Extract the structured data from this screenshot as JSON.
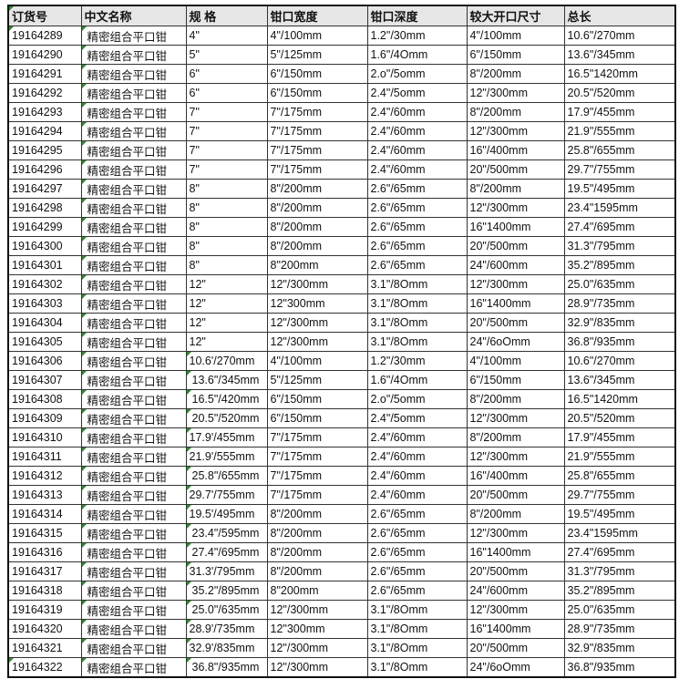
{
  "colors": {
    "header_bg": "#e6e6e6",
    "marker": "#2e8b2e"
  },
  "headers": [
    "订货号",
    "中文名称",
    "规 格",
    "钳口宽度",
    "钳口深度",
    "较大开口尺寸",
    "总长"
  ],
  "rows": [
    [
      "19164289",
      "精密组合平口钳",
      "4\"",
      "4\"/100mm",
      "1.2\"/30mm",
      "4\"/100mm",
      "10.6\"/270mm"
    ],
    [
      "19164290",
      "精密组合平口钳",
      "5\"",
      "5\"/125mm",
      "1.6\"/4Omm",
      "6\"/150mm",
      "13.6\"/345mm"
    ],
    [
      "19164291",
      "精密组合平口钳",
      "6\"",
      "6\"/150mm",
      "2.o\"/5omm",
      "8\"/200mm",
      "16.5\"1420mm"
    ],
    [
      "19164292",
      "精密组合平口钳",
      "6\"",
      "6\"/150mm",
      "2.4\"/5omm",
      "12\"/300mm",
      "20.5\"/520mm"
    ],
    [
      "19164293",
      "精密组合平口钳",
      "7\"",
      "7\"/175mm",
      "2.4\"/60mm",
      "8\"/200mm",
      "17.9\"/455mm"
    ],
    [
      "19164294",
      "精密组合平口钳",
      "7\"",
      "7\"/175mm",
      "2.4\"/60mm",
      "12\"/300mm",
      "21.9\"/555mm"
    ],
    [
      "19164295",
      "精密组合平口钳",
      "7\"",
      "7\"/175mm",
      "2.4\"/60mm",
      "16\"/400mm",
      "25.8\"/655mm"
    ],
    [
      "19164296",
      "精密组合平口钳",
      "7\"",
      "7\"/175mm",
      "2.4\"/60mm",
      "20\"/500mm",
      "29.7\"/755mm"
    ],
    [
      "19164297",
      "精密组合平口钳",
      "8\"",
      "8\"/200mm",
      "2.6\"/65mm",
      "8\"/200mm",
      "19.5\"/495mm"
    ],
    [
      "19164298",
      "精密组合平口钳",
      "8\"",
      "8\"/200mm",
      "2.6\"/65mm",
      "12\"/300mm",
      "23.4\"1595mm"
    ],
    [
      "19164299",
      "精密组合平口钳",
      "8\"",
      "8\"/200mm",
      "2.6\"/65mm",
      "16\"1400mm",
      "27.4\"/695mm"
    ],
    [
      "19164300",
      "精密组合平口钳",
      "8\"",
      "8\"/200mm",
      "2.6\"/65mm",
      "20\"/500mm",
      "31.3\"/795mm"
    ],
    [
      "19164301",
      "精密组合平口钳",
      "8\"",
      "8\"200mm",
      "2.6\"/65mm",
      "24\"/600mm",
      "35.2\"/895mm"
    ],
    [
      "19164302",
      "精密组合平口钳",
      "12\"",
      "12\"/300mm",
      "3.1\"/8Omm",
      "12\"/300mm",
      "25.0\"/635mm"
    ],
    [
      "19164303",
      "精密组合平口钳",
      "12\"",
      "12\"300mm",
      "3.1\"/8Omm",
      "16\"1400mm",
      "28.9\"/735mm"
    ],
    [
      "19164304",
      "精密组合平口钳",
      "12\"",
      "12\"/300mm",
      "3.1\"/8Omm",
      "20\"/500mm",
      "32.9\"/835mm"
    ],
    [
      "19164305",
      "精密组合平口钳",
      "12\"",
      "12\"/300mm",
      "3.1\"/8Omm",
      "24\"/6oOmm",
      "36.8\"/935mm"
    ],
    [
      "19164306",
      "精密组合平口钳",
      "10.6'/270mm",
      "4\"/100mm",
      "1.2\"/30mm",
      "4\"/100mm",
      "10.6\"/270mm"
    ],
    [
      "19164307",
      "精密组合平口钳",
      "13.6\"/345mm",
      "5\"/125mm",
      "1.6\"/4Omm",
      "6\"/150mm",
      "13.6\"/345mm"
    ],
    [
      "19164308",
      "精密组合平口钳",
      "16.5\"/420mm",
      "6\"/150mm",
      "2.o\"/5omm",
      "8\"/200mm",
      "16.5\"1420mm"
    ],
    [
      "19164309",
      "精密组合平口钳",
      "20.5\"/520mm",
      "6\"/150mm",
      "2.4\"/5omm",
      "12\"/300mm",
      "20.5\"/520mm"
    ],
    [
      "19164310",
      "精密组合平口钳",
      "17.9'/455mm",
      "7\"/175mm",
      "2.4\"/60mm",
      "8\"/200mm",
      "17.9\"/455mm"
    ],
    [
      "19164311",
      "精密组合平口钳",
      "21.9'/555mm",
      "7\"/175mm",
      "2.4\"/60mm",
      "12\"/300mm",
      "21.9\"/555mm"
    ],
    [
      "19164312",
      "精密组合平口钳",
      "25.8\"/655mm",
      "7\"/175mm",
      "2.4\"/60mm",
      "16\"/400mm",
      "25.8\"/655mm"
    ],
    [
      "19164313",
      "精密组合平口钳",
      "29.7'/755mm",
      "7\"/175mm",
      "2.4\"/60mm",
      "20\"/500mm",
      "29.7\"/755mm"
    ],
    [
      "19164314",
      "精密组合平口钳",
      "19.5'/495mm",
      "8\"/200mm",
      "2.6\"/65mm",
      "8\"/200mm",
      "19.5\"/495mm"
    ],
    [
      "19164315",
      "精密组合平口钳",
      "23.4\"/595mm",
      "8\"/200mm",
      "2.6\"/65mm",
      "12\"/300mm",
      "23.4\"1595mm"
    ],
    [
      "19164316",
      "精密组合平口钳",
      "27.4\"/695mm",
      "8\"/200mm",
      "2.6\"/65mm",
      "16\"1400mm",
      "27.4\"/695mm"
    ],
    [
      "19164317",
      "精密组合平口钳",
      "31.3'/795mm",
      "8\"/200mm",
      "2.6\"/65mm",
      "20\"/500mm",
      "31.3\"/795mm"
    ],
    [
      "19164318",
      "精密组合平口钳",
      "35.2\"/895mm",
      "8\"200mm",
      "2.6\"/65mm",
      "24\"/600mm",
      "35.2\"/895mm"
    ],
    [
      "19164319",
      "精密组合平口钳",
      "25.0\"/635mm",
      "12\"/300mm",
      "3.1\"/8Omm",
      "12\"/300mm",
      "25.0\"/635mm"
    ],
    [
      "19164320",
      "精密组合平口钳",
      "28.9'/735mm",
      "12\"300mm",
      "3.1\"/8Omm",
      "16\"1400mm",
      "28.9\"/735mm"
    ],
    [
      "19164321",
      "精密组合平口钳",
      "32.9'/835mm",
      "12\"/300mm",
      "3.1\"/8Omm",
      "20\"/500mm",
      "32.9\"/835mm"
    ],
    [
      "19164322",
      "精密组合平口钳",
      "36.8\"/935mm",
      "12\"/300mm",
      "3.1\"/8Omm",
      "24\"/6oOmm",
      "36.8\"/935mm"
    ]
  ]
}
